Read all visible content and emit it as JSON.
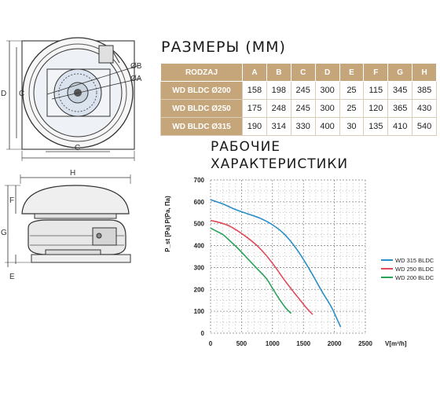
{
  "dimensions": {
    "title": "РАЗМЕРЫ (ММ)",
    "columns": [
      "RODZAJ",
      "A",
      "B",
      "C",
      "D",
      "E",
      "F",
      "G",
      "H"
    ],
    "rows": [
      {
        "model": "WD BLDC Ø200",
        "values": [
          "158",
          "198",
          "245",
          "300",
          "25",
          "115",
          "345",
          "385"
        ]
      },
      {
        "model": "WD BLDC Ø250",
        "values": [
          "175",
          "248",
          "245",
          "300",
          "25",
          "120",
          "365",
          "430"
        ]
      },
      {
        "model": "WD BLDC Ø315",
        "values": [
          "190",
          "314",
          "330",
          "400",
          "30",
          "135",
          "410",
          "540"
        ]
      }
    ]
  },
  "performance": {
    "title_line1": "РАБОЧИЕ",
    "title_line2": "ХАРАКТЕРИСТИКИ"
  },
  "drawing_labels": {
    "top_view": {
      "d": "D",
      "c_left": "C",
      "c_bottom": "C",
      "b": "ØB",
      "a": "ØA"
    },
    "side_view": {
      "h": "H",
      "f": "F",
      "g": "G",
      "e": "E"
    }
  },
  "chart_data": {
    "type": "line",
    "ylabel": "P_st [Pa] P(Pa, Па)",
    "xlabel": "V[m³/h]",
    "xlim": [
      0,
      2500
    ],
    "ylim": [
      0,
      700
    ],
    "xticks": [
      "0",
      "500",
      "1000",
      "1500",
      "2000",
      "2500"
    ],
    "yticks": [
      "0",
      "100",
      "200",
      "300",
      "400",
      "500",
      "600",
      "700"
    ],
    "grid": true,
    "legend_position": "right",
    "series": [
      {
        "name": "WD 315 BLDC",
        "color": "#2a8fc8",
        "x": [
          0,
          200,
          400,
          600,
          800,
          1000,
          1200,
          1400,
          1600,
          1800,
          1950,
          2050,
          2100
        ],
        "y": [
          610,
          590,
          565,
          545,
          525,
          495,
          450,
          380,
          290,
          190,
          120,
          60,
          28
        ]
      },
      {
        "name": "WD 250 BLDC",
        "color": "#e04a5a",
        "x": [
          0,
          150,
          300,
          450,
          600,
          750,
          900,
          1050,
          1200,
          1350,
          1450,
          1550,
          1650
        ],
        "y": [
          515,
          505,
          490,
          465,
          435,
          400,
          355,
          300,
          240,
          185,
          150,
          115,
          85
        ]
      },
      {
        "name": "WD 200 BLDC",
        "color": "#2aa35a",
        "x": [
          0,
          100,
          200,
          300,
          450,
          600,
          750,
          900,
          1000,
          1100,
          1200,
          1300
        ],
        "y": [
          480,
          465,
          450,
          425,
          385,
          340,
          295,
          250,
          205,
          160,
          120,
          90
        ]
      }
    ]
  }
}
